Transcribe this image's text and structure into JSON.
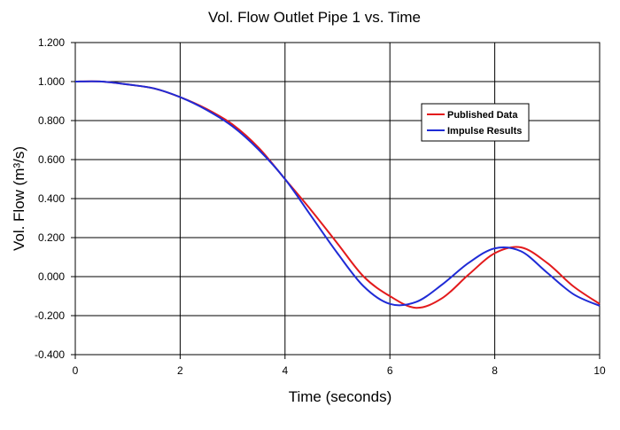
{
  "chart_data": {
    "type": "line",
    "title": "Vol. Flow Outlet Pipe 1 vs. Time",
    "xlabel": "Time (seconds)",
    "ylabel": "Vol. Flow (m³/s)",
    "xlim": [
      0,
      10
    ],
    "ylim": [
      -0.4,
      1.2
    ],
    "xticks": [
      0,
      2,
      4,
      6,
      8,
      10
    ],
    "xtick_labels": [
      "0",
      "2",
      "4",
      "6",
      "8",
      "10"
    ],
    "yticks": [
      -0.4,
      -0.2,
      0,
      0.2,
      0.4,
      0.6,
      0.8,
      1.0,
      1.2
    ],
    "ytick_labels": [
      "-0.400",
      "-0.200",
      "0.000",
      "0.200",
      "0.400",
      "0.600",
      "0.800",
      "1.000",
      "1.200"
    ],
    "grid": true,
    "legend_position": "right, upper-middle",
    "series": [
      {
        "name": "Published Data",
        "color": "#e31a1c",
        "x": [
          0,
          0.5,
          1,
          1.5,
          2,
          2.5,
          3,
          3.5,
          4,
          4.5,
          5,
          5.5,
          6,
          6.5,
          7,
          7.5,
          8,
          8.5,
          9,
          9.5,
          10
        ],
        "y": [
          1.0,
          1.0,
          0.985,
          0.965,
          0.92,
          0.86,
          0.78,
          0.66,
          0.5,
          0.34,
          0.17,
          0.0,
          -0.1,
          -0.16,
          -0.11,
          0.01,
          0.12,
          0.15,
          0.07,
          -0.05,
          -0.14
        ]
      },
      {
        "name": "Impulse Results",
        "color": "#1f2bd6",
        "x": [
          0,
          0.5,
          1,
          1.5,
          2,
          2.5,
          3,
          3.5,
          4,
          4.5,
          5,
          5.5,
          6,
          6.5,
          7,
          7.5,
          8,
          8.5,
          9,
          9.5,
          10
        ],
        "y": [
          1.0,
          1.0,
          0.985,
          0.965,
          0.92,
          0.855,
          0.77,
          0.65,
          0.5,
          0.31,
          0.12,
          -0.05,
          -0.14,
          -0.13,
          -0.04,
          0.07,
          0.145,
          0.13,
          0.02,
          -0.09,
          -0.15
        ]
      }
    ]
  }
}
